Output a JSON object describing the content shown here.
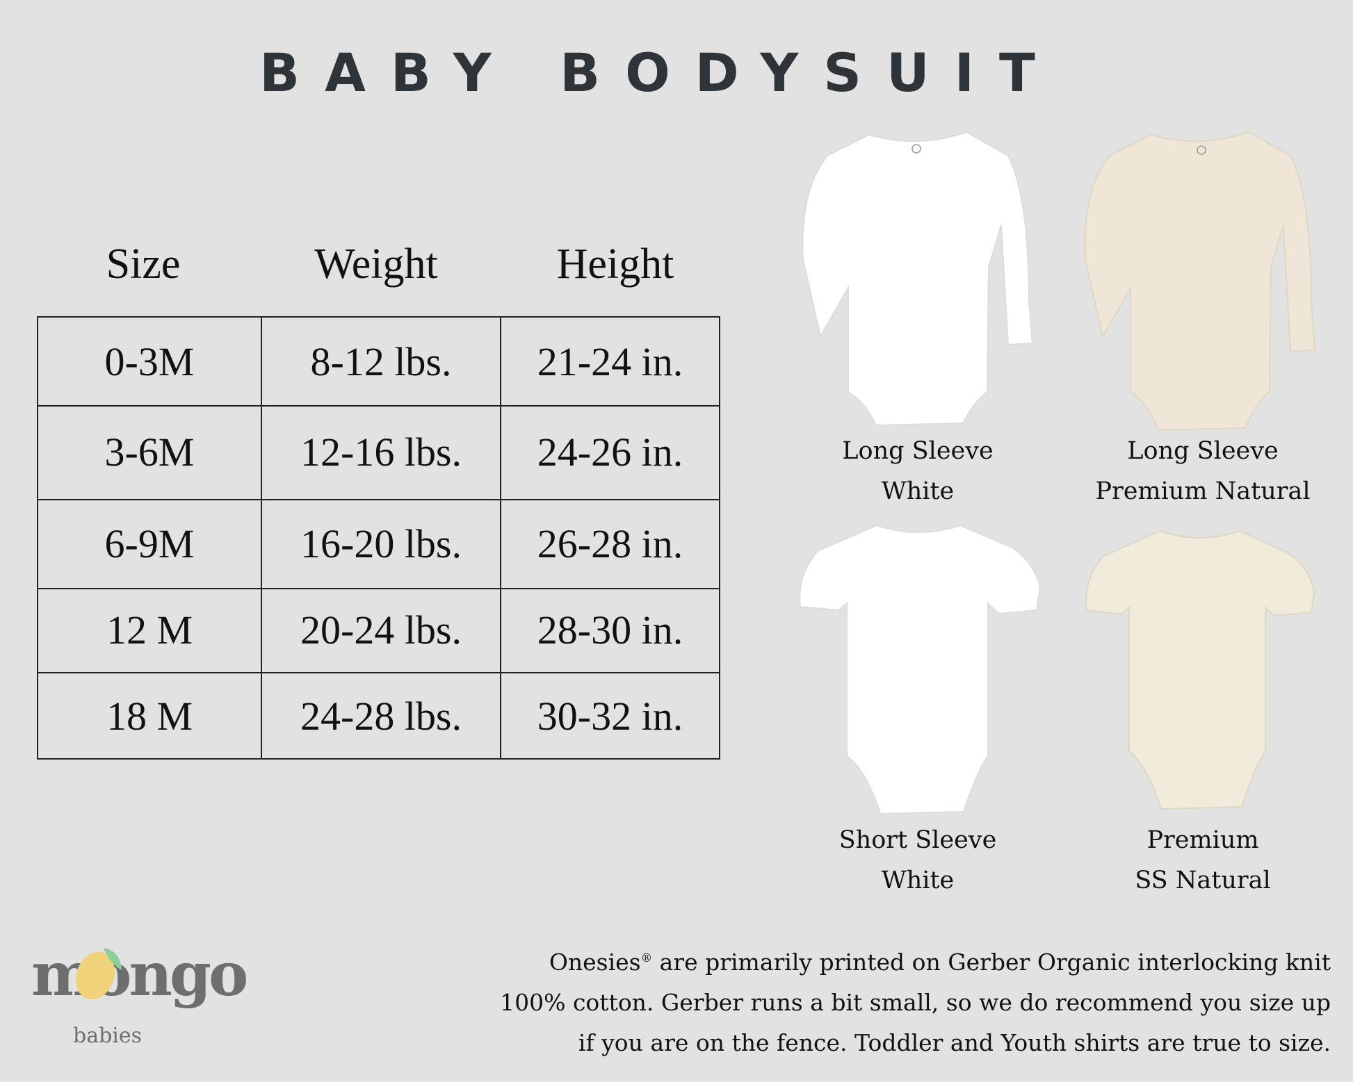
{
  "title": "BABY BODYSUIT",
  "table": {
    "headers": [
      "Size",
      "Weight",
      "Height"
    ],
    "rows": [
      [
        "0-3M",
        "8-12 lbs.",
        "21-24 in."
      ],
      [
        "3-6M",
        "12-16 lbs.",
        "24-26 in."
      ],
      [
        "6-9M",
        "16-20 lbs.",
        "26-28 in."
      ],
      [
        "12 M",
        "20-24 lbs.",
        "28-30 in."
      ],
      [
        "18 M",
        "24-28 lbs.",
        "30-32 in."
      ]
    ]
  },
  "products": [
    {
      "line1": "Long Sleeve",
      "line2": "White",
      "color": "#ffffff"
    },
    {
      "line1": "Long Sleeve",
      "line2": "Premium Natural",
      "color": "#efe6d8"
    },
    {
      "line1": "Short Sleeve",
      "line2": "White",
      "color": "#ffffff"
    },
    {
      "line1": "Premium",
      "line2": "SS Natural",
      "color": "#f1ebdc"
    }
  ],
  "note": {
    "line1_brand": "Onesies",
    "line1_mark": "®",
    "line1_rest": " are primarily printed on Gerber Organic interlocking knit",
    "line2": "100% cotton. Gerber runs a bit small, so we do recommend you size up",
    "line3": "if you are on the fence. Toddler and Youth shirts are true to size."
  },
  "logo": {
    "word": "mongo",
    "sub": "babies",
    "text_color": "#6e6e6e",
    "mango_color": "#f0d27a",
    "leaf_color": "#8ccf9a"
  },
  "colors": {
    "background": "#e2e2e2",
    "title": "#2f3439"
  }
}
